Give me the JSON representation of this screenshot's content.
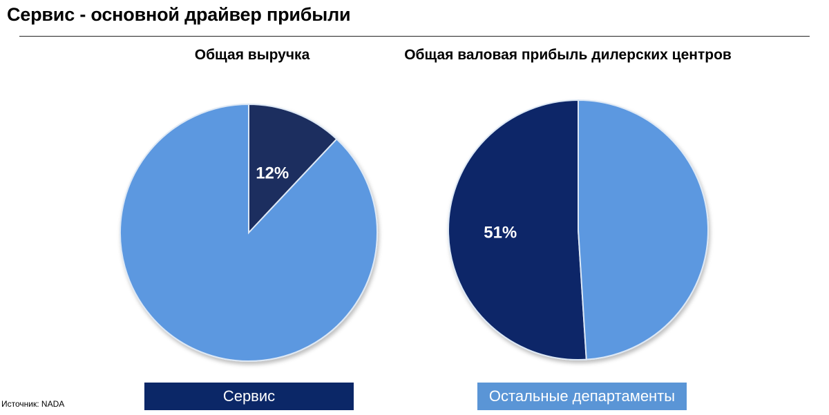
{
  "page": {
    "title": "Сервис - основной драйвер прибыли",
    "source": "Источник: NADA"
  },
  "colors": {
    "service": "#0b2767",
    "service_left_chart": "#1d2e5e",
    "other": "#5c98e0"
  },
  "legend": [
    {
      "label": "Сервис",
      "color": "#0b2767"
    },
    {
      "label": "Остальные департаменты",
      "color": "#5a95d6"
    }
  ],
  "chart_data": [
    {
      "type": "pie",
      "title": "Общая выручка",
      "slices": [
        {
          "name": "Сервис",
          "value": 12,
          "label": "12%"
        },
        {
          "name": "Остальные департаменты",
          "value": 88,
          "label": ""
        }
      ]
    },
    {
      "type": "pie",
      "title": "Общая валовая прибыль дилерских центров",
      "slices": [
        {
          "name": "Сервис",
          "value": 51,
          "label": "51%"
        },
        {
          "name": "Остальные департаменты",
          "value": 49,
          "label": ""
        }
      ]
    }
  ]
}
